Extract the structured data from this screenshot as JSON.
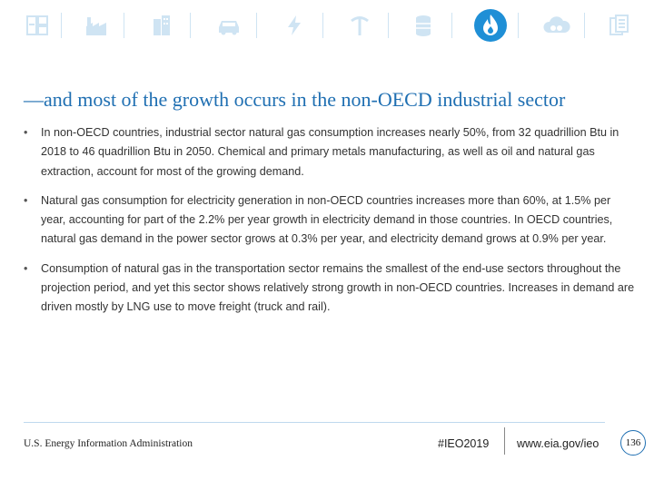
{
  "icon_bar": {
    "color": "#cfe4f3",
    "active_color": "#1f8fd6",
    "icons": [
      "appliances-icon",
      "industry-icon",
      "buildings-icon",
      "car-icon",
      "electricity-icon",
      "mining-icon",
      "oil-barrel-icon",
      "natural-gas-flame-icon",
      "co2-icon",
      "documents-icon"
    ],
    "active": "natural-gas-flame-icon"
  },
  "slide": {
    "title": "—and most of the growth occurs in the non-OECD industrial sector",
    "bullet_marker": "•",
    "bullets": [
      "In non-OECD countries, industrial sector natural gas consumption increases nearly 50%, from 32 quadrillion Btu in 2018 to 46 quadrillion Btu in 2050. Chemical and primary metals manufacturing, as well as oil and natural gas extraction, account for most of the growing demand.",
      "Natural gas consumption for electricity generation in non-OECD countries increases more than 60%, at 1.5% per year, accounting for part of the 2.2% per year growth in electricity demand in those countries. In OECD countries, natural gas demand in the power sector grows at 0.3% per year, and electricity demand grows at 0.9% per year.",
      "Consumption of natural gas in the transportation sector remains the smallest of the end-use sectors throughout the projection period, and yet this sector shows relatively strong growth in non-OECD countries. Increases in demand are driven mostly by LNG use to move freight (truck and rail)."
    ]
  },
  "footer": {
    "agency": "U.S. Energy Information Administration",
    "hashtag": "#IEO2019",
    "website": "www.eia.gov/ieo",
    "page_number": "136"
  },
  "colors": {
    "title": "#1f6fb2",
    "body_text": "#333333",
    "accent": "#1f8fd6"
  }
}
